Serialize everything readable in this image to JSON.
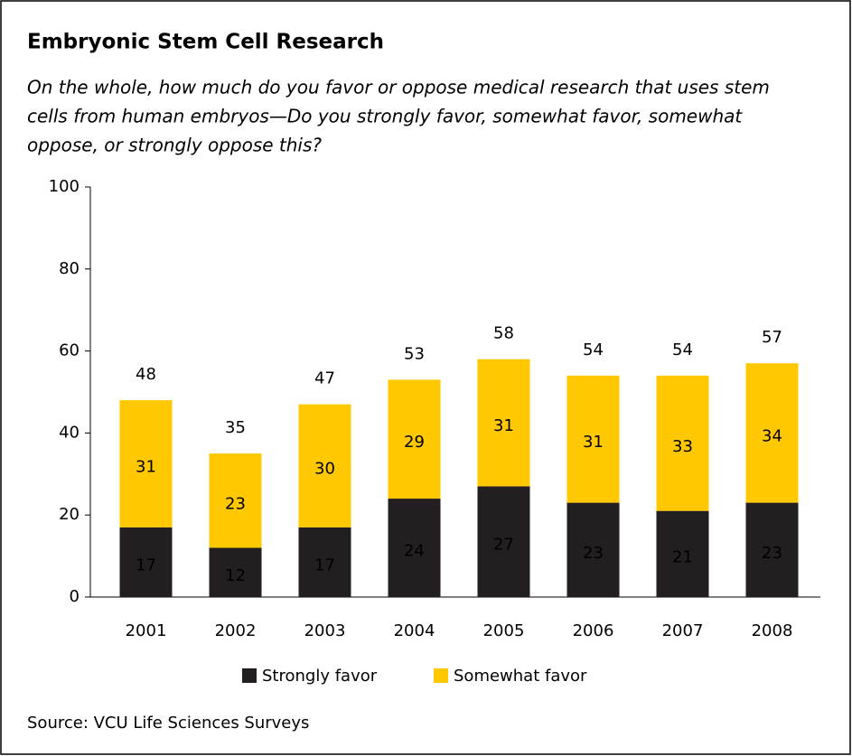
{
  "chart_data": {
    "type": "stacked-bar",
    "title": "Embryonic Stem Cell Research",
    "subtitle": [
      "On the whole, how much do you favor or oppose medical research that uses stem",
      "cells from human embryos—Do you strongly favor, somewhat favor, somewhat",
      "oppose, or strongly oppose this?"
    ],
    "categories": [
      "2001",
      "2002",
      "2003",
      "2004",
      "2005",
      "2006",
      "2007",
      "2008"
    ],
    "series": [
      {
        "name": "Strongly favor",
        "color": "#231f20",
        "values": [
          17,
          12,
          17,
          24,
          27,
          23,
          21,
          23
        ]
      },
      {
        "name": "Somewhat favor",
        "color": "#ffc800",
        "values": [
          31,
          23,
          30,
          29,
          31,
          31,
          33,
          34
        ]
      }
    ],
    "totals": [
      48,
      35,
      47,
      53,
      58,
      54,
      54,
      57
    ],
    "ylim": [
      0,
      100
    ],
    "yticks": [
      0,
      20,
      40,
      60,
      80,
      100
    ],
    "legend": "bottom",
    "source": "Source: VCU Life Sciences Surveys"
  }
}
